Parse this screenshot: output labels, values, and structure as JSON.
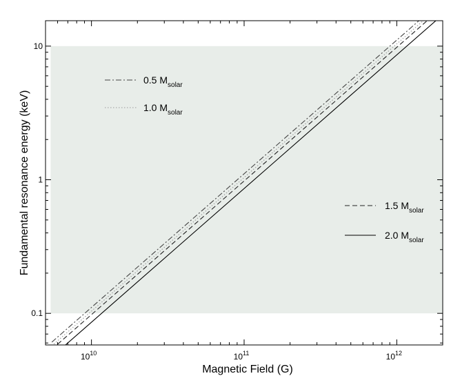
{
  "chart_data": {
    "type": "line",
    "x_scale": "log",
    "y_scale": "log",
    "xlabel": "Magnetic Field (G)",
    "ylabel": "Fundamental resonance energy (keV)",
    "xlim": [
      5000000000.0,
      2000000000000.0
    ],
    "ylim": [
      0.058,
      15.5
    ],
    "x_tick_values": [
      10000000000.0,
      100000000000.0,
      1000000000000.0
    ],
    "x_tick_labels": [
      {
        "base": "10",
        "exp": "10"
      },
      {
        "base": "10",
        "exp": "11"
      },
      {
        "base": "10",
        "exp": "12"
      }
    ],
    "y_tick_values": [
      0.1,
      1,
      10
    ],
    "y_tick_labels": [
      "0.1",
      "1",
      "10"
    ],
    "shaded_band": {
      "y_min": 0.1,
      "y_max": 10,
      "x_min": 5400000000.0,
      "x_max": 2000000000000.0,
      "color": "#e8ede9"
    },
    "grid": false,
    "series": [
      {
        "name": "0.5 M",
        "name_sub": "solar",
        "style": "dashdot",
        "color": "#444444",
        "x": [
          5500000000.0,
          2000000000000.0
        ],
        "y": [
          0.0609,
          22.2
        ]
      },
      {
        "name": "1.0 M",
        "name_sub": "solar",
        "style": "dotted",
        "color": "#9a9a9a",
        "x": [
          5500000000.0,
          2000000000000.0
        ],
        "y": [
          0.0571,
          20.8
        ]
      },
      {
        "name": "1.5 M",
        "name_sub": "solar",
        "style": "dashed",
        "color": "#222222",
        "x": [
          5500000000.0,
          2000000000000.0
        ],
        "y": [
          0.0538,
          19.6
        ]
      },
      {
        "name": "2.0 M",
        "name_sub": "solar",
        "style": "solid",
        "color": "#000000",
        "x": [
          5500000000.0,
          2000000000000.0
        ],
        "y": [
          0.0472,
          17.2
        ]
      }
    ],
    "legends": [
      {
        "placement": "top-left",
        "series_index": [
          0,
          1
        ]
      },
      {
        "placement": "center-right",
        "series_index": [
          2,
          3
        ]
      }
    ]
  }
}
